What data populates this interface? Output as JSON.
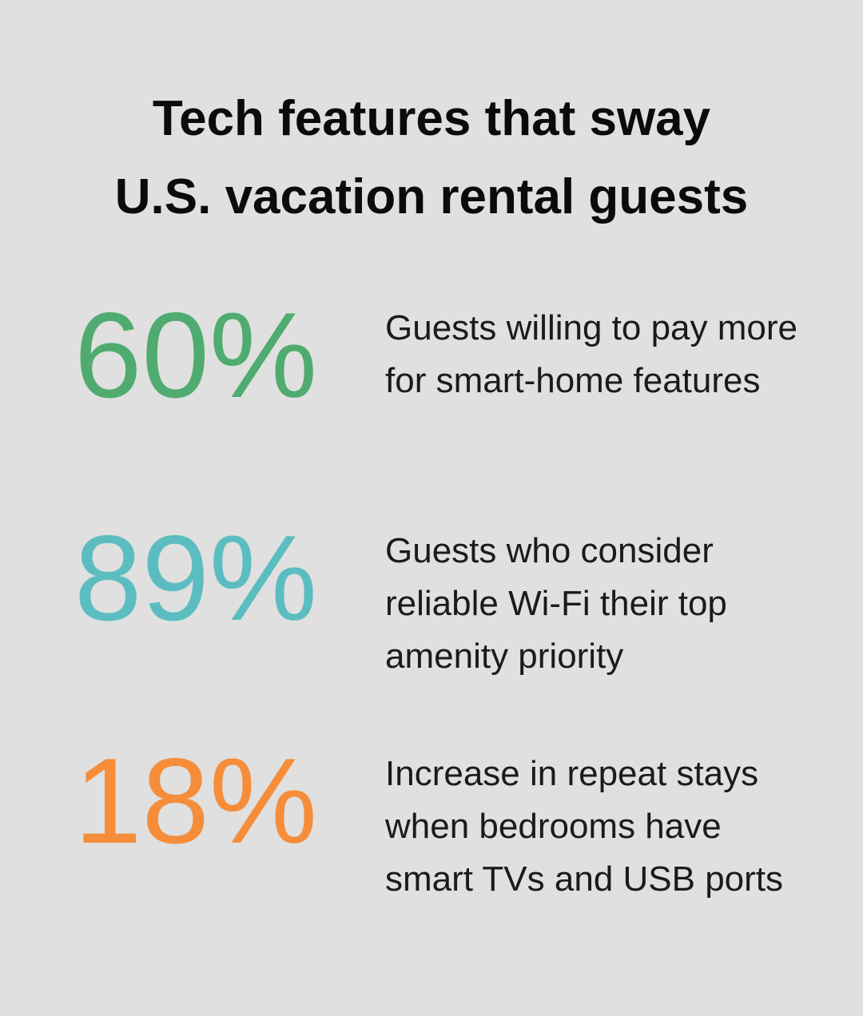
{
  "header": {
    "title_lines": [
      "Tech features that sway",
      "U.S. vacation rental guests"
    ]
  },
  "stats": [
    {
      "value": "60%",
      "description": "Guests willing to pay more for smart-home features",
      "color": "#4fab6f"
    },
    {
      "value": "89%",
      "description": "Guests who consider reliable Wi-Fi their top amenity priority",
      "color": "#5bbdc0"
    },
    {
      "value": "18%",
      "description": "Increase in repeat stays when bedrooms have smart TVs and USB ports",
      "color": "#f68d3a"
    }
  ]
}
